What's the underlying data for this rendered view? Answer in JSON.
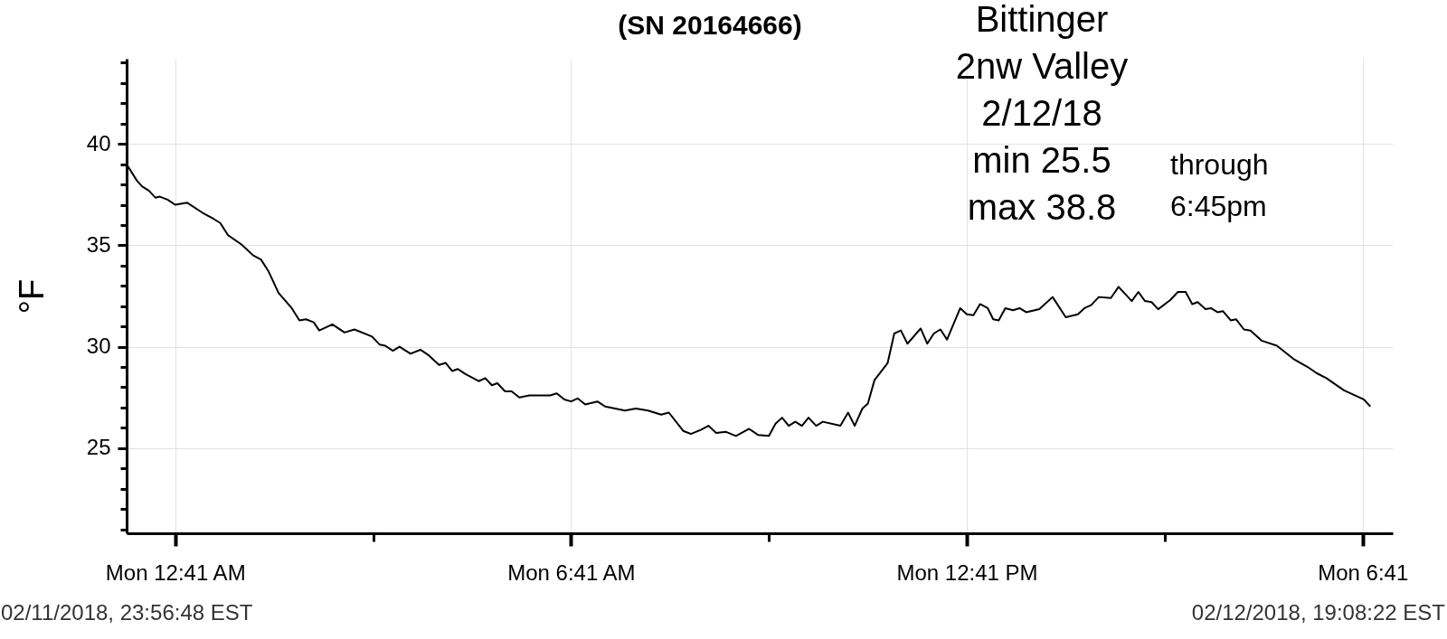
{
  "chart_data": {
    "type": "line",
    "title": "(SN 20164666)",
    "ylabel": "°F",
    "color": "#000000",
    "grid": true,
    "annotations": [
      "Bittinger\n2nw Valley\n2/12/18\nmin 25.5\nmax 38.8",
      "through\n6:45pm",
      "02/11/2018, 23:56:48 EST",
      "02/12/2018, 19:08:22 EST"
    ],
    "xlim": [
      "2018-02-11T23:56:48",
      "2018-02-12T19:08:22"
    ],
    "xticks": [
      {
        "value": "2018-02-12T00:41",
        "label": "Mon 12:41 AM"
      },
      {
        "value": "2018-02-12T03:41",
        "label": null
      },
      {
        "value": "2018-02-12T06:41",
        "label": "Mon 6:41 AM"
      },
      {
        "value": "2018-02-12T09:41",
        "label": null
      },
      {
        "value": "2018-02-12T12:41",
        "label": "Mon 12:41 PM"
      },
      {
        "value": "2018-02-12T15:41",
        "label": null
      },
      {
        "value": "2018-02-12T18:41",
        "label": "Mon 6:41"
      }
    ],
    "ylim": [
      20.8,
      44.2
    ],
    "yticks": [
      {
        "value": 21,
        "label": null
      },
      {
        "value": 22,
        "label": null
      },
      {
        "value": 23,
        "label": null
      },
      {
        "value": 24,
        "label": null
      },
      25,
      {
        "value": 26,
        "label": null
      },
      {
        "value": 27,
        "label": null
      },
      {
        "value": 28,
        "label": null
      },
      {
        "value": 29,
        "label": null
      },
      30,
      {
        "value": 31,
        "label": null
      },
      {
        "value": 32,
        "label": null
      },
      {
        "value": 33,
        "label": null
      },
      {
        "value": 34,
        "label": null
      },
      35,
      {
        "value": 36,
        "label": null
      },
      {
        "value": 37,
        "label": null
      },
      {
        "value": 38,
        "label": null
      },
      {
        "value": 39,
        "label": null
      },
      40,
      {
        "value": 41,
        "label": null
      },
      {
        "value": 42,
        "label": null
      },
      {
        "value": 43,
        "label": null
      },
      {
        "value": 44,
        "label": null
      }
    ],
    "x": [
      "2018-02-11T23:56:48",
      "2018-02-11T23:58",
      "2018-02-12T00:06",
      "2018-02-12T00:11",
      "2018-02-12T00:17",
      "2018-02-12T00:23",
      "2018-02-12T00:27",
      "2018-02-12T00:34",
      "2018-02-12T00:41",
      "2018-02-12T00:52",
      "2018-02-12T01:06",
      "2018-02-12T01:16",
      "2018-02-12T01:22",
      "2018-02-12T01:29",
      "2018-02-12T01:41",
      "2018-02-12T01:52",
      "2018-02-12T01:59",
      "2018-02-12T02:06",
      "2018-02-12T02:15",
      "2018-02-12T02:27",
      "2018-02-12T02:34",
      "2018-02-12T02:40",
      "2018-02-12T02:47",
      "2018-02-12T02:52",
      "2018-02-12T03:04",
      "2018-02-12T03:15",
      "2018-02-12T03:24",
      "2018-02-12T03:40",
      "2018-02-12T03:47",
      "2018-02-12T03:52",
      "2018-02-12T03:59",
      "2018-02-12T04:05",
      "2018-02-12T04:15",
      "2018-02-12T04:24",
      "2018-02-12T04:31",
      "2018-02-12T04:41",
      "2018-02-12T04:47",
      "2018-02-12T04:53",
      "2018-02-12T04:58",
      "2018-02-12T05:05",
      "2018-02-12T05:17",
      "2018-02-12T05:23",
      "2018-02-12T05:29",
      "2018-02-12T05:34",
      "2018-02-12T05:41",
      "2018-02-12T05:47",
      "2018-02-12T05:54",
      "2018-02-12T06:03",
      "2018-02-12T06:22",
      "2018-02-12T06:28",
      "2018-02-12T06:35",
      "2018-02-12T06:41",
      "2018-02-12T06:47",
      "2018-02-12T06:54",
      "2018-02-12T07:05",
      "2018-02-12T07:12",
      "2018-02-12T07:30",
      "2018-02-12T07:40",
      "2018-02-12T07:51",
      "2018-02-12T08:03",
      "2018-02-12T08:10",
      "2018-02-12T08:23",
      "2018-02-12T08:30",
      "2018-02-12T08:39",
      "2018-02-12T08:46",
      "2018-02-12T08:53",
      "2018-02-12T09:02",
      "2018-02-12T09:11",
      "2018-02-12T09:23",
      "2018-02-12T09:31",
      "2018-02-12T09:41",
      "2018-02-12T09:47",
      "2018-02-12T09:53",
      "2018-02-12T09:59",
      "2018-02-12T10:05",
      "2018-02-12T10:11",
      "2018-02-12T10:17",
      "2018-02-12T10:24",
      "2018-02-12T10:30",
      "2018-02-12T10:46",
      "2018-02-12T10:53",
      "2018-02-12T10:59",
      "2018-02-12T11:06",
      "2018-02-12T11:11",
      "2018-02-12T11:17",
      "2018-02-12T11:29",
      "2018-02-12T11:35",
      "2018-02-12T11:41",
      "2018-02-12T11:47",
      "2018-02-12T11:59",
      "2018-02-12T12:05",
      "2018-02-12T12:11",
      "2018-02-12T12:17",
      "2018-02-12T12:23",
      "2018-02-12T12:35",
      "2018-02-12T12:41",
      "2018-02-12T12:47",
      "2018-02-12T12:53",
      "2018-02-12T13:00",
      "2018-02-12T13:05",
      "2018-02-12T13:10",
      "2018-02-12T13:16",
      "2018-02-12T13:23",
      "2018-02-12T13:29",
      "2018-02-12T13:35",
      "2018-02-12T13:47",
      "2018-02-12T13:59",
      "2018-02-12T14:11",
      "2018-02-12T14:22",
      "2018-02-12T14:28",
      "2018-02-12T14:34",
      "2018-02-12T14:41",
      "2018-02-12T14:52",
      "2018-02-12T14:59",
      "2018-02-12T15:11",
      "2018-02-12T15:17",
      "2018-02-12T15:23",
      "2018-02-12T15:29",
      "2018-02-12T15:35",
      "2018-02-12T15:46",
      "2018-02-12T15:53",
      "2018-02-12T16:00",
      "2018-02-12T16:06",
      "2018-02-12T16:11",
      "2018-02-12T16:18",
      "2018-02-12T16:23",
      "2018-02-12T16:29",
      "2018-02-12T16:34",
      "2018-02-12T16:41",
      "2018-02-12T16:46",
      "2018-02-12T16:53",
      "2018-02-12T16:59",
      "2018-02-12T17:09",
      "2018-02-12T17:23",
      "2018-02-12T17:38",
      "2018-02-12T17:51",
      "2018-02-12T17:59",
      "2018-02-12T18:08",
      "2018-02-12T18:24",
      "2018-02-12T18:42",
      "2018-02-12T18:48"
    ],
    "values": [
      38.9,
      38.9,
      38.2,
      37.9,
      37.7,
      37.35,
      37.4,
      37.25,
      37.0,
      37.1,
      36.6,
      36.3,
      36.1,
      35.5,
      35.05,
      34.5,
      34.3,
      33.7,
      32.65,
      31.9,
      31.3,
      31.35,
      31.2,
      30.8,
      31.1,
      30.7,
      30.85,
      30.5,
      30.1,
      30.05,
      29.8,
      30.0,
      29.65,
      29.85,
      29.6,
      29.1,
      29.2,
      28.8,
      28.9,
      28.65,
      28.3,
      28.45,
      28.1,
      28.2,
      27.8,
      27.8,
      27.5,
      27.6,
      27.6,
      27.7,
      27.4,
      27.3,
      27.45,
      27.15,
      27.3,
      27.05,
      26.85,
      26.95,
      26.85,
      26.65,
      26.75,
      25.85,
      25.7,
      25.9,
      26.1,
      25.75,
      25.8,
      25.6,
      25.95,
      25.65,
      25.6,
      26.2,
      26.5,
      26.1,
      26.3,
      26.1,
      26.5,
      26.1,
      26.3,
      26.1,
      26.75,
      26.1,
      26.95,
      27.2,
      28.35,
      29.2,
      30.65,
      30.8,
      30.15,
      30.9,
      30.15,
      30.65,
      30.85,
      30.35,
      31.9,
      31.6,
      31.55,
      32.1,
      31.9,
      31.35,
      31.3,
      31.9,
      31.8,
      31.9,
      31.7,
      31.85,
      32.45,
      31.45,
      31.6,
      31.9,
      32.05,
      32.45,
      32.4,
      32.95,
      32.25,
      32.7,
      32.25,
      32.2,
      31.85,
      32.3,
      32.7,
      32.7,
      32.1,
      32.2,
      31.85,
      31.9,
      31.7,
      31.75,
      31.3,
      31.35,
      30.85,
      30.8,
      30.3,
      30.05,
      29.4,
      29.0,
      28.7,
      28.45,
      27.85,
      27.4,
      27.05
    ]
  }
}
